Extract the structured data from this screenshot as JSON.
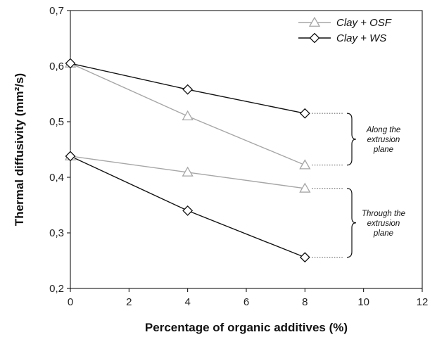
{
  "chart_data": {
    "type": "line",
    "xlabel": "Percentage of organic additives (%)",
    "ylabel": "Thermal diffusivity (mm²/s)",
    "xlim": [
      0,
      12
    ],
    "ylim": [
      0.2,
      0.7
    ],
    "xticks": [
      0,
      2,
      4,
      6,
      8,
      10,
      12
    ],
    "yticks": [
      0.2,
      0.3,
      0.4,
      0.5,
      0.6,
      0.7
    ],
    "xtick_labels": [
      "0",
      "2",
      "4",
      "6",
      "8",
      "10",
      "12"
    ],
    "ytick_labels": [
      "0,2",
      "0,3",
      "0,4",
      "0,5",
      "0,6",
      "0,7"
    ],
    "grid": false,
    "legend_position": "top-right",
    "series": [
      {
        "name": "Clay + OSF",
        "marker": "triangle",
        "color": "#a6a6a6",
        "group": "along",
        "x": [
          0,
          4,
          8
        ],
        "y": [
          0.605,
          0.51,
          0.422
        ]
      },
      {
        "name": "Clay + WS",
        "marker": "diamond",
        "color": "#111111",
        "group": "along",
        "x": [
          0,
          4,
          8
        ],
        "y": [
          0.605,
          0.558,
          0.515
        ]
      },
      {
        "name": "Clay + OSF",
        "marker": "triangle",
        "color": "#a6a6a6",
        "group": "through",
        "x": [
          0,
          4,
          8
        ],
        "y": [
          0.438,
          0.409,
          0.38
        ]
      },
      {
        "name": "Clay + WS",
        "marker": "diamond",
        "color": "#111111",
        "group": "through",
        "x": [
          0,
          4,
          8
        ],
        "y": [
          0.438,
          0.34,
          0.256
        ]
      }
    ],
    "annotations": [
      {
        "group": "along",
        "lines": [
          "Along the",
          "extrusion",
          "plane"
        ]
      },
      {
        "group": "through",
        "lines": [
          "Through the",
          "extrusion",
          "plane"
        ]
      }
    ]
  }
}
